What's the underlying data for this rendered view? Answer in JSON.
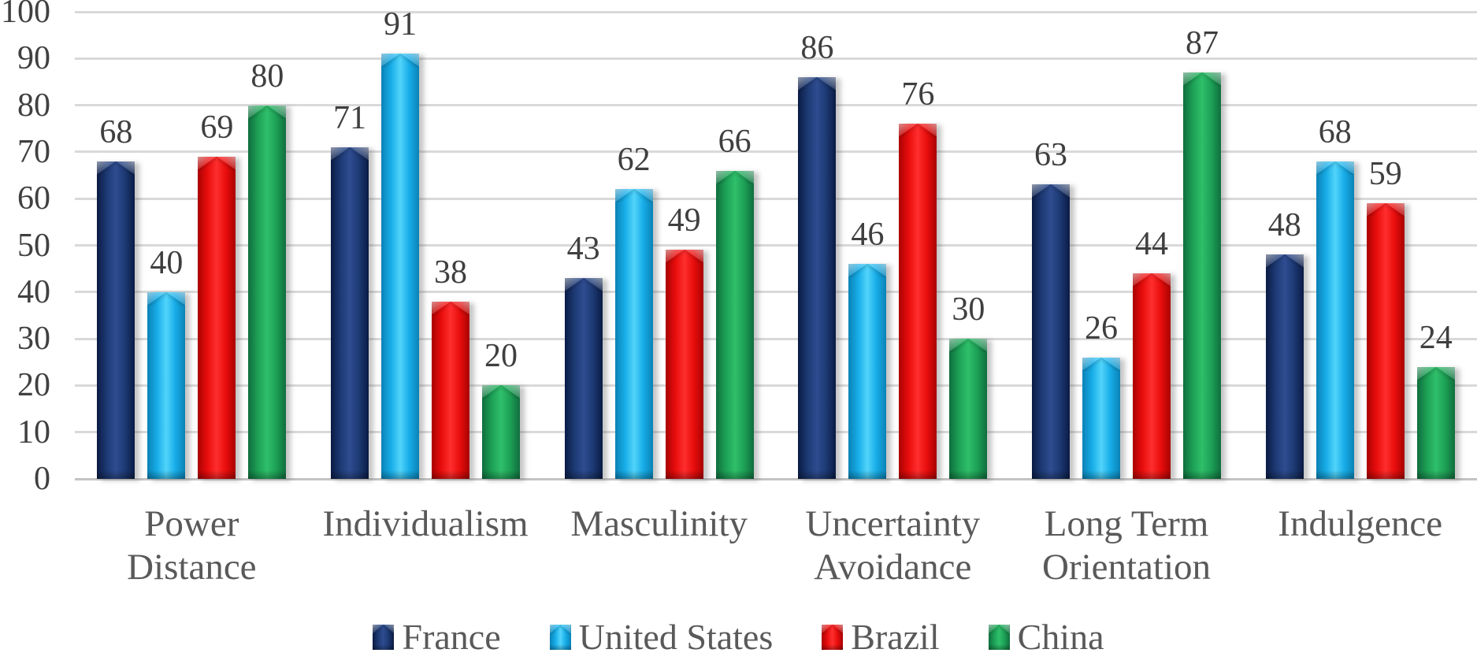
{
  "chart_data": {
    "type": "bar",
    "title": "",
    "categories": [
      "Power Distance",
      "Individualism",
      "Masculinity",
      "Uncertainty Avoidance",
      "Long Term Orientation",
      "Indulgence"
    ],
    "series": [
      {
        "name": "France",
        "values": [
          68,
          71,
          43,
          86,
          63,
          48
        ],
        "color": "#1d3a74",
        "color_dark": "#0a1b44",
        "color_light": "#2e4c90"
      },
      {
        "name": "United States",
        "values": [
          40,
          91,
          62,
          46,
          26,
          68
        ],
        "color": "#17ade8",
        "color_dark": "#0a82b5",
        "color_light": "#52d4fb"
      },
      {
        "name": "Brazil",
        "values": [
          69,
          38,
          49,
          76,
          44,
          59
        ],
        "color": "#e90d0d",
        "color_dark": "#a90202",
        "color_light": "#ff2e2e"
      },
      {
        "name": "China",
        "values": [
          80,
          20,
          66,
          30,
          87,
          24
        ],
        "color": "#1da156",
        "color_dark": "#0f6e3d",
        "color_light": "#2fbf6a"
      }
    ],
    "xlabel": "",
    "ylabel": "",
    "ylim": [
      0,
      100
    ],
    "yticks": [
      0,
      10,
      20,
      30,
      40,
      50,
      60,
      70,
      80,
      90,
      100
    ],
    "grid": "horizontal",
    "gridline_color": "#d9d9d9",
    "tick_label_color": "#404040",
    "category_label_color": "#595959",
    "data_labels": true,
    "data_label_color": "#3f3f3f",
    "legend_position": "bottom"
  }
}
